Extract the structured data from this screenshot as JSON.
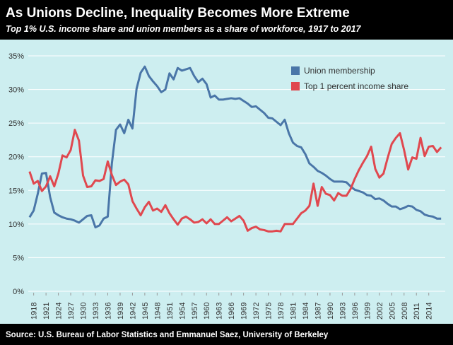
{
  "chart_data": {
    "type": "line",
    "title": "As Unions Decline, Inequality Becomes More Extreme",
    "subtitle": "Top 1% U.S. income share and union members as a share of workforce, 1917 to 2017",
    "caption": "Source: U.S. Bureau of Labor Statistics and Emmanuel Saez, University of Berkeley",
    "x": [
      1917,
      1918,
      1919,
      1920,
      1921,
      1922,
      1923,
      1924,
      1925,
      1926,
      1927,
      1928,
      1929,
      1930,
      1931,
      1932,
      1933,
      1934,
      1935,
      1936,
      1937,
      1938,
      1939,
      1940,
      1941,
      1942,
      1943,
      1944,
      1945,
      1946,
      1947,
      1948,
      1949,
      1950,
      1951,
      1952,
      1953,
      1954,
      1955,
      1956,
      1957,
      1958,
      1959,
      1960,
      1961,
      1962,
      1963,
      1964,
      1965,
      1966,
      1967,
      1968,
      1969,
      1970,
      1971,
      1972,
      1973,
      1974,
      1975,
      1976,
      1977,
      1978,
      1979,
      1980,
      1981,
      1982,
      1983,
      1984,
      1985,
      1986,
      1987,
      1988,
      1989,
      1990,
      1991,
      1992,
      1993,
      1994,
      1995,
      1996,
      1997,
      1998,
      1999,
      2000,
      2001,
      2002,
      2003,
      2004,
      2005,
      2006,
      2007,
      2008,
      2009,
      2010,
      2011,
      2012,
      2013,
      2014,
      2015,
      2016,
      2017
    ],
    "series": [
      {
        "name": "Union membership",
        "color": "#4a76a8",
        "values": [
          11,
          12,
          14.5,
          17.5,
          17.6,
          14,
          11.7,
          11.3,
          11,
          10.8,
          10.7,
          10.5,
          10.2,
          10.7,
          11.2,
          11.3,
          9.5,
          9.8,
          10.8,
          11.1,
          19,
          24,
          24.8,
          23.5,
          25.5,
          24.2,
          30.1,
          32.5,
          33.4,
          32,
          31.2,
          30.5,
          29.6,
          30,
          32.4,
          31.5,
          33.2,
          32.8,
          33,
          33.2,
          32,
          31.1,
          31.6,
          30.8,
          28.8,
          29.1,
          28.5,
          28.5,
          28.6,
          28.7,
          28.6,
          28.7,
          28.3,
          27.9,
          27.4,
          27.5,
          27,
          26.5,
          25.8,
          25.7,
          25.2,
          24.7,
          25.5,
          23.5,
          22.1,
          21.6,
          21.4,
          20.4,
          19,
          18.5,
          17.9,
          17.6,
          17.2,
          16.7,
          16.3,
          16.3,
          16.3,
          16.2,
          15.6,
          15.1,
          14.9,
          14.7,
          14.3,
          14.2,
          13.7,
          13.8,
          13.5,
          13,
          12.6,
          12.6,
          12.2,
          12.4,
          12.7,
          12.6,
          12.1,
          11.9,
          11.4,
          11.2,
          11.1,
          10.8,
          10.8
        ]
      },
      {
        "name": "Top 1 percent income share",
        "color": "#e0484f",
        "values": [
          17.8,
          16,
          16.4,
          14.9,
          15.6,
          17.1,
          15.6,
          17.5,
          20.2,
          19.9,
          21,
          24,
          22.4,
          17.2,
          15.5,
          15.6,
          16.5,
          16.4,
          16.7,
          19.3,
          17.3,
          15.8,
          16.3,
          16.6,
          15.9,
          13.4,
          12.3,
          11.3,
          12.5,
          13.3,
          12,
          12.3,
          11.8,
          12.8,
          11.6,
          10.7,
          9.9,
          10.8,
          11.1,
          10.7,
          10.2,
          10.3,
          10.7,
          10.1,
          10.7,
          10,
          10,
          10.5,
          11,
          10.4,
          10.8,
          11.2,
          10.5,
          9,
          9.4,
          9.6,
          9.2,
          9.1,
          8.9,
          8.9,
          9,
          8.9,
          10,
          10,
          10,
          10.8,
          11.6,
          12,
          12.7,
          16,
          12.7,
          15.5,
          14.5,
          14.3,
          13.5,
          14.6,
          14.2,
          14.2,
          15.2,
          16.7,
          18,
          19.1,
          20.1,
          21.5,
          18.2,
          16.9,
          17.5,
          19.8,
          21.9,
          22.8,
          23.5,
          21,
          18.1,
          19.9,
          19.7,
          22.8,
          20.1,
          21.5,
          21.6,
          20.7,
          21.4
        ]
      }
    ],
    "xlim": [
      1916,
      2018
    ],
    "xticks": [
      1918,
      1921,
      1924,
      1927,
      1930,
      1933,
      1936,
      1939,
      1942,
      1945,
      1948,
      1951,
      1954,
      1957,
      1960,
      1963,
      1966,
      1969,
      1972,
      1975,
      1978,
      1981,
      1984,
      1987,
      1990,
      1993,
      1996,
      1999,
      2002,
      2005,
      2008,
      2011,
      2014
    ],
    "ylim": [
      0,
      35
    ],
    "yticks": [
      {
        "value": 0,
        "label": "0%"
      },
      {
        "value": 5,
        "label": "5%"
      },
      {
        "value": 10,
        "label": "10%"
      },
      {
        "value": 15,
        "label": "15%"
      },
      {
        "value": 20,
        "label": "20%"
      },
      {
        "value": 25,
        "label": "25%"
      },
      {
        "value": 30,
        "label": "30%"
      },
      {
        "value": 35,
        "label": "35%"
      }
    ],
    "grid": true,
    "legend": "upper right"
  }
}
